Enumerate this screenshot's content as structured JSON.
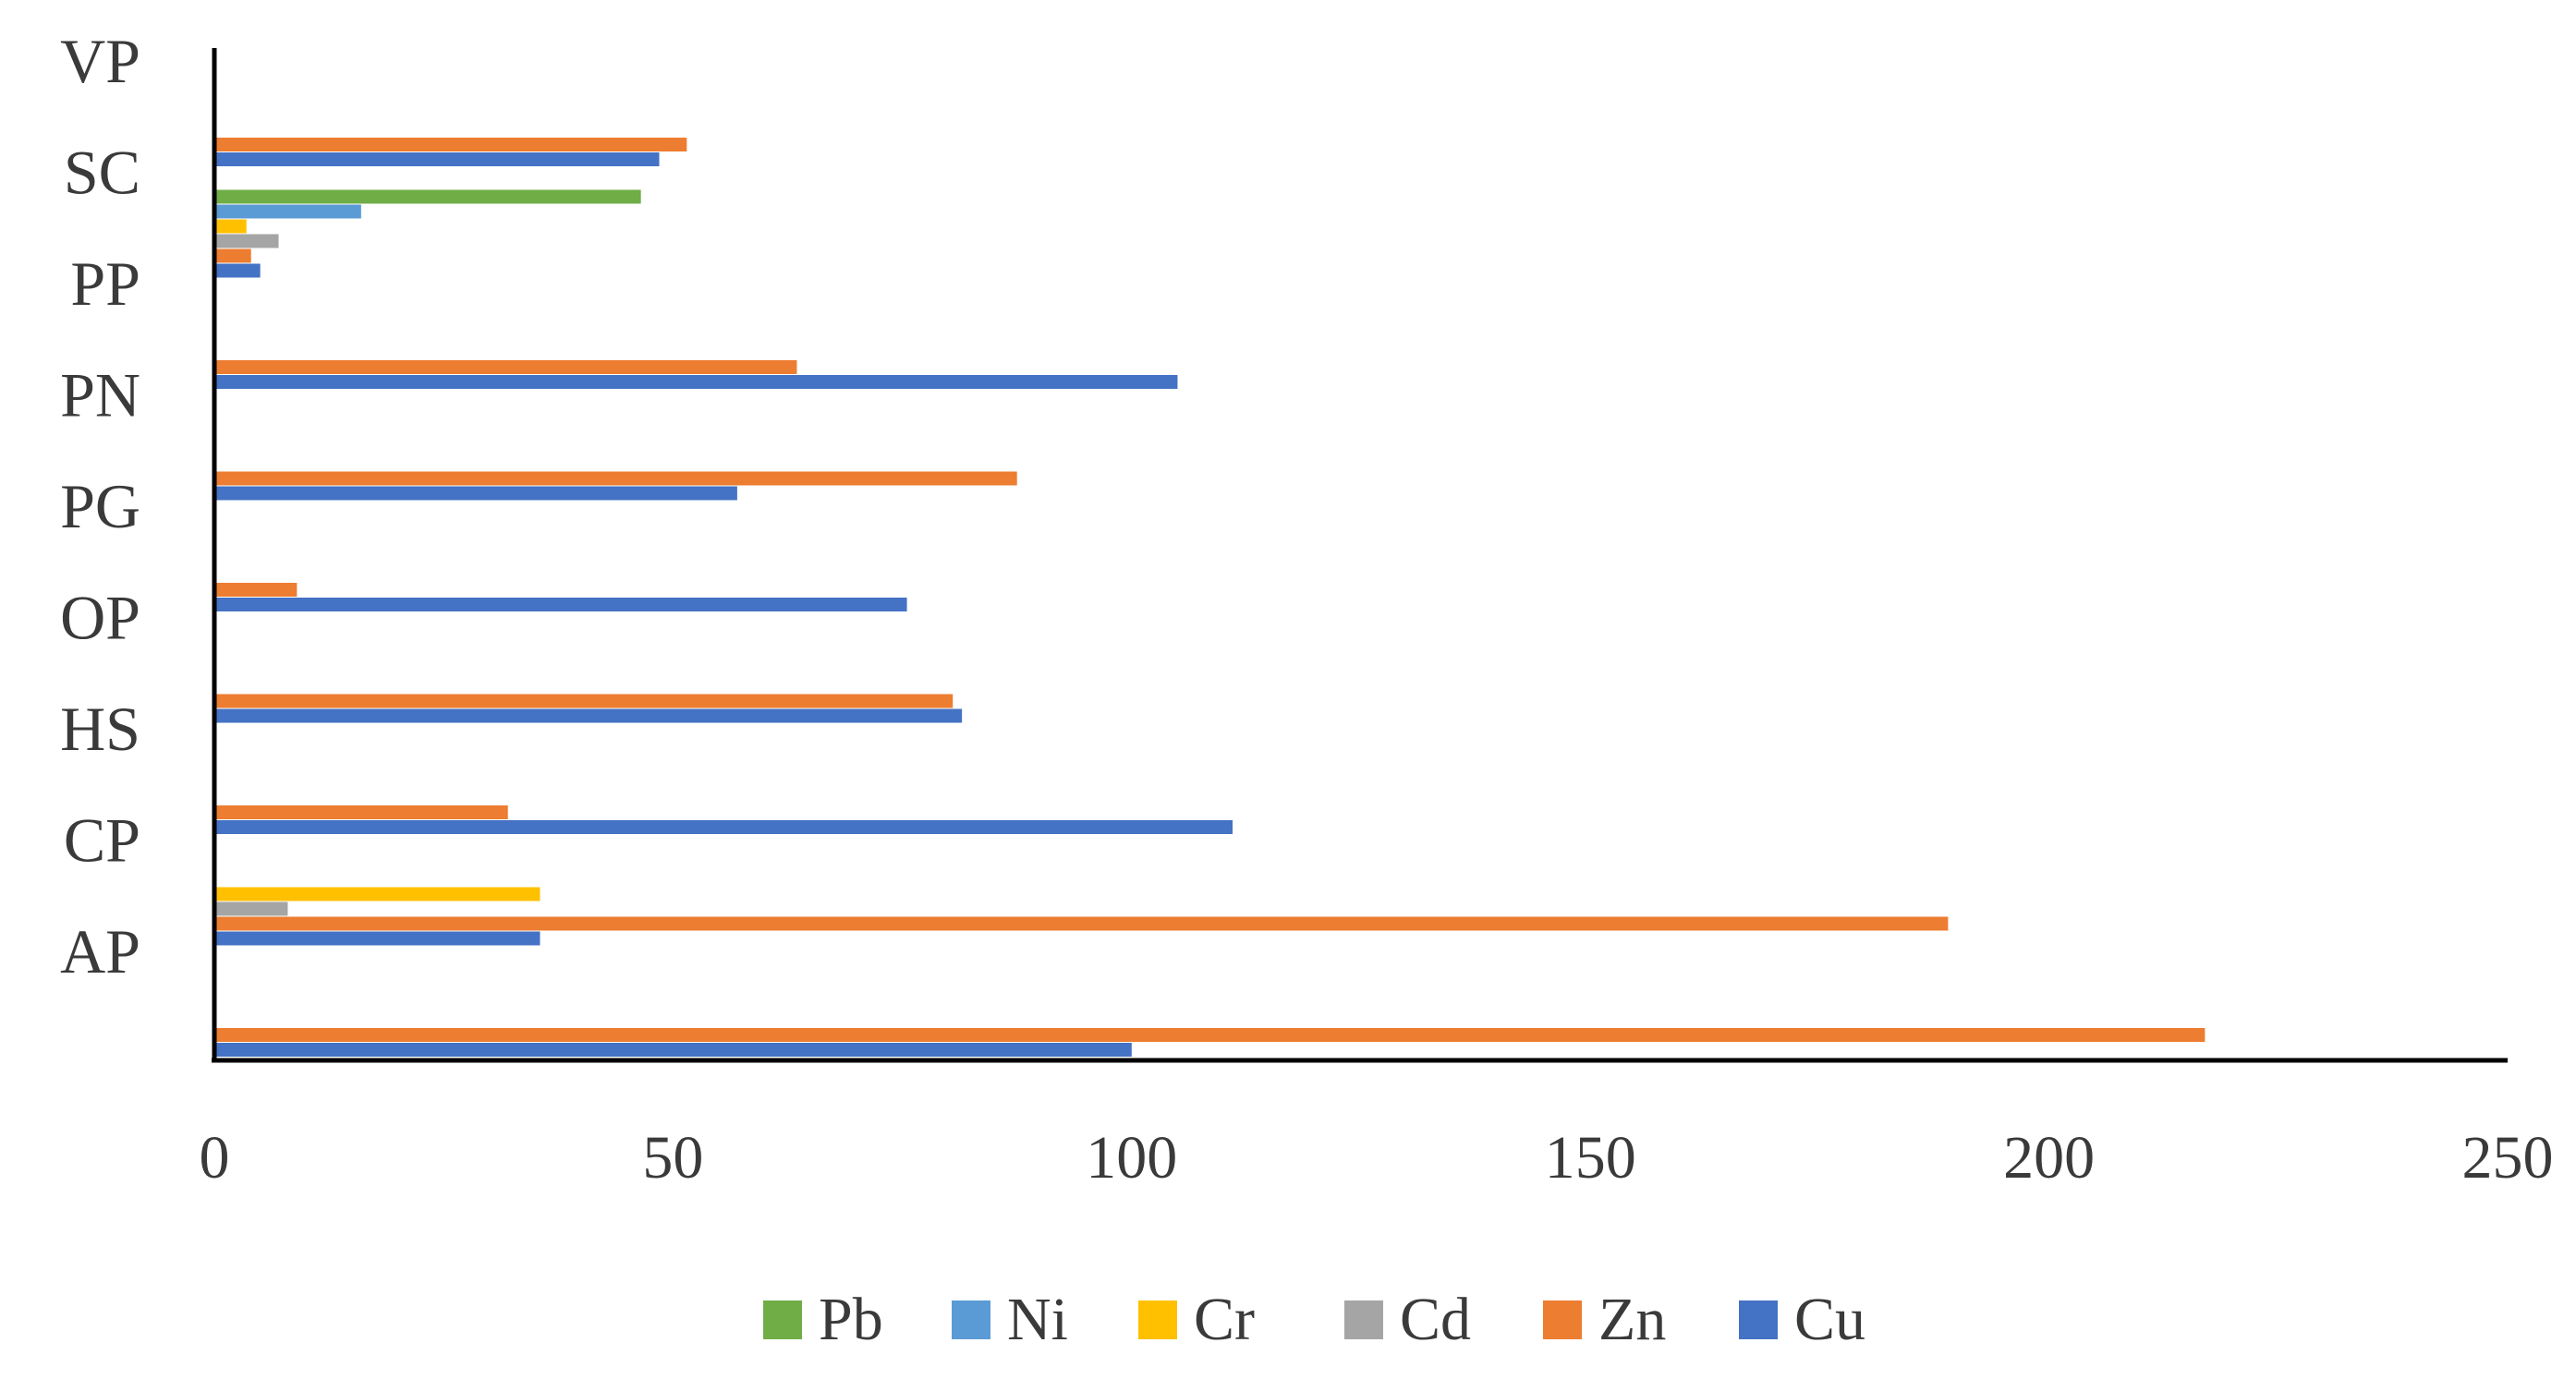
{
  "chart_data": {
    "type": "bar",
    "orientation": "horizontal",
    "categories": [
      "AP",
      "CP",
      "HS",
      "OP",
      "PG",
      "PN",
      "PP",
      "SC",
      "VP"
    ],
    "series": [
      {
        "name": "Cu",
        "color": "#4472C4",
        "values": [
          100,
          35.5,
          111,
          81.5,
          75.5,
          57,
          105,
          5,
          48.5
        ]
      },
      {
        "name": "Zn",
        "color": "#ED7D31",
        "values": [
          217,
          189,
          32,
          80.5,
          9,
          87.5,
          63.5,
          4,
          51.5
        ]
      },
      {
        "name": "Cd",
        "color": "#A5A5A5",
        "values": [
          null,
          8,
          null,
          null,
          null,
          null,
          null,
          7,
          null
        ]
      },
      {
        "name": "Cr",
        "color": "#FFC000",
        "values": [
          null,
          35.5,
          null,
          null,
          null,
          null,
          null,
          3.5,
          null
        ]
      },
      {
        "name": "Ni",
        "color": "#5B9BD5",
        "values": [
          null,
          null,
          null,
          null,
          null,
          null,
          null,
          16,
          null
        ]
      },
      {
        "name": "Pb",
        "color": "#70AD47",
        "values": [
          null,
          null,
          null,
          null,
          null,
          null,
          null,
          46.5,
          null
        ]
      }
    ],
    "xlim": [
      0,
      250
    ],
    "xticks": [
      "0",
      "50",
      "100",
      "150",
      "200",
      "250"
    ],
    "grid": false,
    "legend_position": "bottom",
    "legend_order": [
      "Pb",
      "Ni",
      "Cr",
      "Cd",
      "Zn",
      "Cu"
    ],
    "title": "",
    "xlabel": "",
    "ylabel": ""
  }
}
